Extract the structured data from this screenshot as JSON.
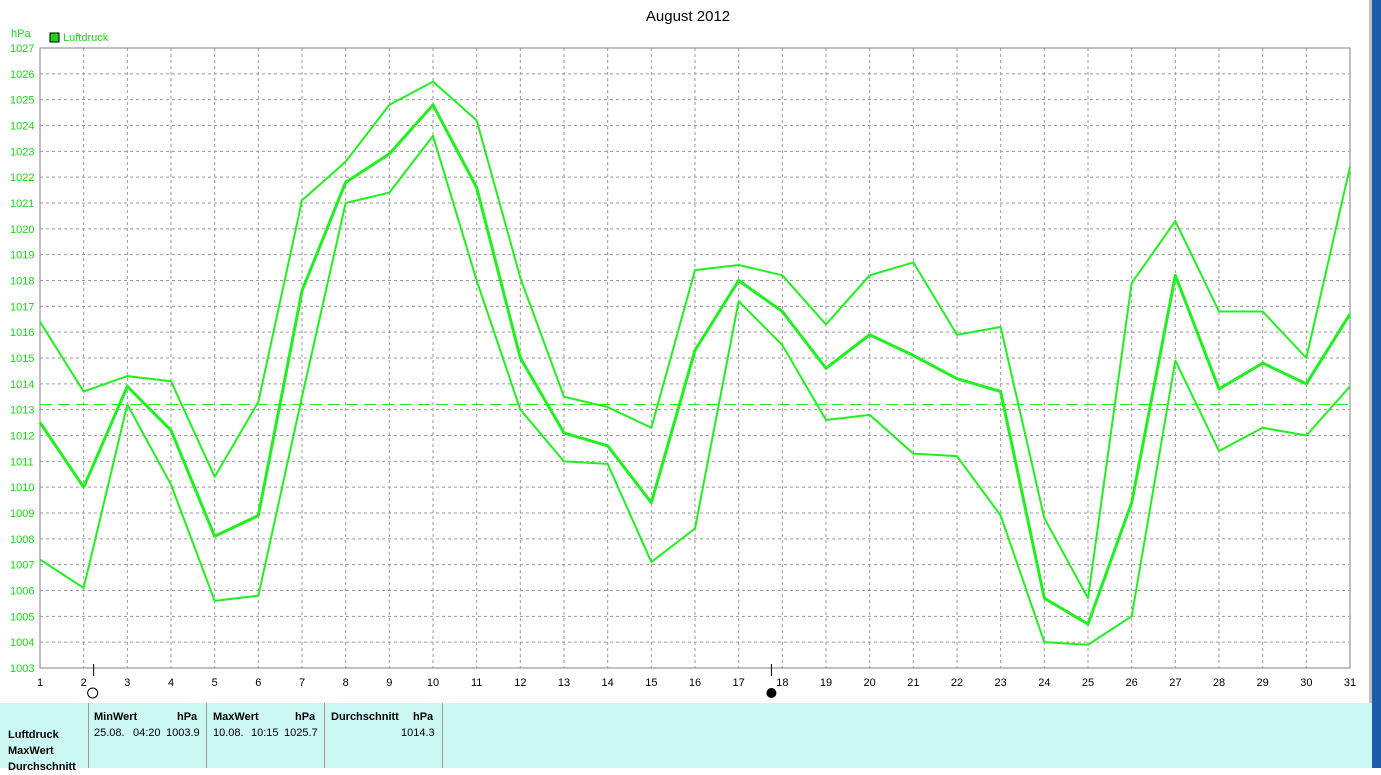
{
  "chart_data": {
    "type": "line",
    "title": "August 2012",
    "ylabel": "hPa",
    "ylim": [
      1003,
      1027
    ],
    "xlim": [
      1,
      31
    ],
    "x": [
      1,
      2,
      3,
      4,
      5,
      6,
      7,
      8,
      9,
      10,
      11,
      12,
      13,
      14,
      15,
      16,
      17,
      18,
      19,
      20,
      21,
      22,
      23,
      24,
      25,
      26,
      27,
      28,
      29,
      30,
      31
    ],
    "legend": "Luftdruck",
    "legend_color": "#18d818",
    "line_color": "#20f020",
    "grid": true,
    "average_line": 1013.2,
    "series": [
      {
        "role": "max",
        "values": [
          1016.4,
          1013.7,
          1014.3,
          1014.1,
          1010.4,
          1013.3,
          1021.1,
          1022.6,
          1024.8,
          1025.7,
          1024.2,
          1018.1,
          1013.5,
          1013.1,
          1012.3,
          1018.4,
          1018.6,
          1018.2,
          1016.3,
          1018.2,
          1018.7,
          1015.9,
          1016.2,
          1008.8,
          1005.7,
          1017.9,
          1020.3,
          1016.8,
          1016.8,
          1015.0,
          1022.4
        ]
      },
      {
        "role": "mean",
        "values": [
          1012.5,
          1010.0,
          1013.9,
          1012.2,
          1008.1,
          1008.9,
          1017.6,
          1021.8,
          1022.9,
          1024.8,
          1021.6,
          1015.0,
          1012.1,
          1011.6,
          1009.4,
          1015.3,
          1018.0,
          1016.8,
          1014.6,
          1015.9,
          1015.1,
          1014.2,
          1013.7,
          1005.7,
          1004.7,
          1009.4,
          1018.2,
          1013.8,
          1014.8,
          1014.0,
          1016.7
        ]
      },
      {
        "role": "min",
        "values": [
          1007.2,
          1006.1,
          1013.2,
          1010.1,
          1005.6,
          1005.8,
          1013.5,
          1021.0,
          1021.4,
          1023.6,
          1018.0,
          1013.0,
          1011.0,
          1010.9,
          1007.1,
          1008.4,
          1017.2,
          1015.5,
          1012.6,
          1012.8,
          1011.3,
          1011.2,
          1008.9,
          1004.0,
          1003.9,
          1005.0,
          1014.9,
          1011.4,
          1012.3,
          1012.0,
          1013.9
        ]
      }
    ],
    "markers": {
      "open_circle_day": 2,
      "filled_circle_day": 17.75
    }
  },
  "stats": {
    "row_labels": [
      "Luftdruck",
      "MaxWert",
      "Durchschnitt"
    ],
    "min_header": "MinWert",
    "min_unit": "hPa",
    "min_date": "25.08.",
    "min_time": "04:20",
    "min_value": "1003.9",
    "max_header": "MaxWert",
    "max_unit": "hPa",
    "max_date": "10.08.",
    "max_time": "10:15",
    "max_value": "1025.7",
    "avg_header": "Durchschnitt",
    "avg_unit": "hPa",
    "avg_value": "1014.3"
  }
}
